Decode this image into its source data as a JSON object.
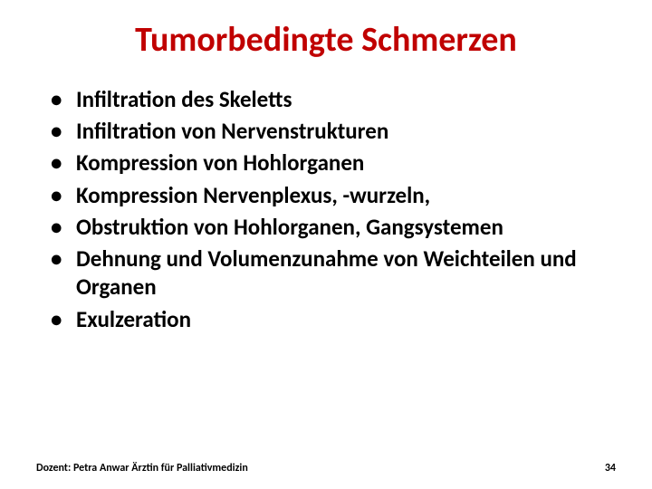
{
  "title": {
    "text": "Tumorbedingte Schmerzen",
    "color": "#c00000",
    "fontsize": 38,
    "fontweight": 700
  },
  "bullets": {
    "items": [
      "Infiltration des Skeletts",
      "Infiltration von Nervenstrukturen",
      "Kompression von Hohlorganen",
      "Kompression Nervenplexus, -wurzeln,",
      "Obstruktion von Hohlorganen, Gangsystemen",
      "Dehnung und Volumenzunahme von Weichteilen und Organen",
      "Exulzeration"
    ],
    "color": "#000000",
    "fontsize": 25,
    "fontweight": 700
  },
  "footer": {
    "lecturer": "Dozent: Petra Anwar Ärztin für Palliativmedizin",
    "page": "34",
    "color": "#000000",
    "fontsize": 12,
    "fontweight": 700
  },
  "background_color": "#ffffff"
}
